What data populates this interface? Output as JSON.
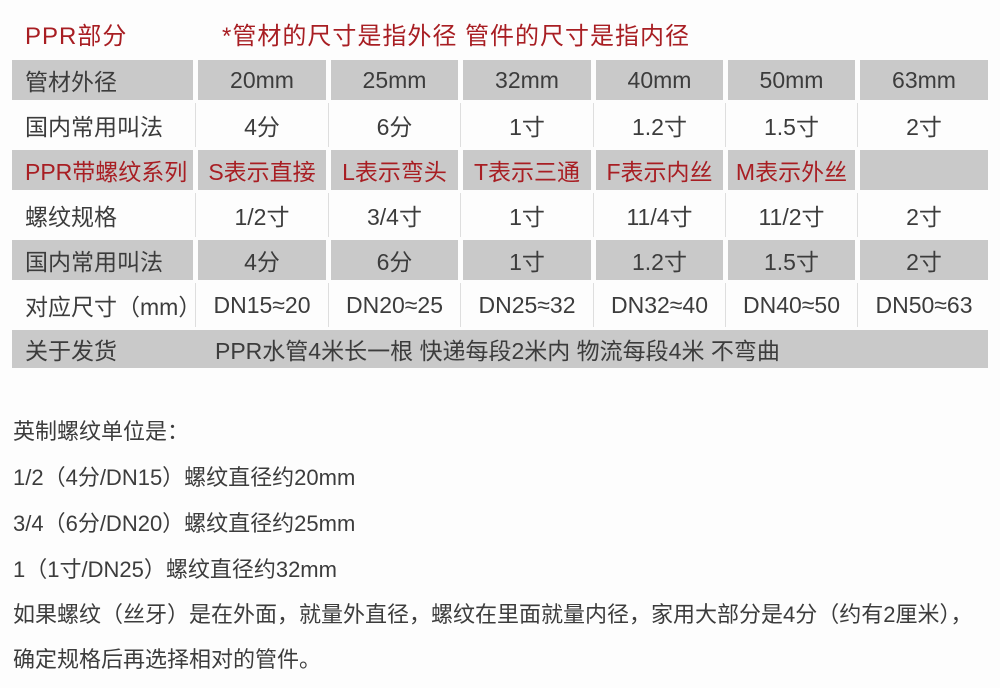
{
  "header": {
    "section_label": "PPR部分",
    "note": "*管材的尺寸是指外径 管件的尺寸是指内径"
  },
  "table": {
    "rows": [
      {
        "label": "管材外径",
        "cells": [
          "20mm",
          "25mm",
          "32mm",
          "40mm",
          "50mm",
          "63mm"
        ]
      },
      {
        "label": "国内常用叫法",
        "cells": [
          "4分",
          "6分",
          "1寸",
          "1.2寸",
          "1.5寸",
          "2寸"
        ]
      },
      {
        "label": "PPR带螺纹系列",
        "cells": [
          "S表示直接",
          "L表示弯头",
          "T表示三通",
          "F表示内丝",
          "M表示外丝",
          ""
        ]
      },
      {
        "label": "螺纹规格",
        "cells": [
          "1/2寸",
          "3/4寸",
          "1寸",
          "11/4寸",
          "11/2寸",
          "2寸"
        ]
      },
      {
        "label": "国内常用叫法",
        "cells": [
          "4分",
          "6分",
          "1寸",
          "1.2寸",
          "1.5寸",
          "2寸"
        ]
      },
      {
        "label": "对应尺寸（mm）",
        "cells": [
          "DN15≈20",
          "DN20≈25",
          "DN25≈32",
          "DN32≈40",
          "DN40≈50",
          "DN50≈63"
        ]
      }
    ],
    "shipping_row": {
      "label": "关于发货",
      "text": "PPR水管4米长一根  快递每段2米内  物流每段4米  不弯曲"
    }
  },
  "notes": {
    "title": "英制螺纹单位是：",
    "lines": [
      "1/2（4分/DN15）螺纹直径约20mm",
      "3/4（6分/DN20）螺纹直径约25mm",
      "1（1寸/DN25）螺纹直径约32mm"
    ],
    "paragraph": "如果螺纹（丝牙）是在外面，就量外直径，螺纹在里面就量内径，家用大部分是4分（约有2厘米），确定规格后再选择相对的管件。"
  },
  "colors": {
    "accent_red": "#a81e23",
    "cell_gray": "#c9c9c9",
    "text_dark": "#3c3c3c",
    "separator_light": "#dedede"
  }
}
